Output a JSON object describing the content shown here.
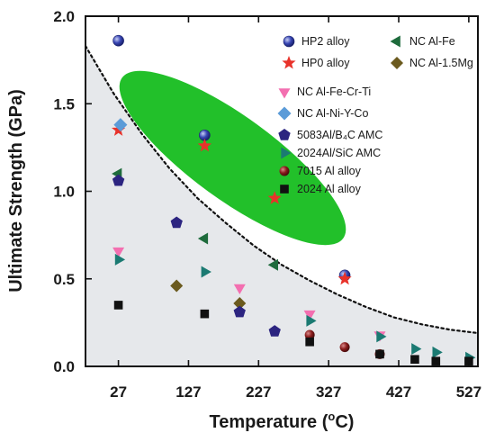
{
  "chart_data": {
    "type": "scatter",
    "title": "",
    "xlabel": "Temperature (",
    "xlabel_sup": "o",
    "xlabel_tail": "C)",
    "ylabel": "Ultimate Strength (GPa)",
    "xlim": [
      -20,
      540
    ],
    "ylim": [
      0,
      2.0
    ],
    "xticks": [
      27,
      127,
      227,
      327,
      427,
      527
    ],
    "yticks": [
      0.0,
      0.5,
      1.0,
      1.5,
      2.0
    ],
    "ytick_labels": [
      "0.0",
      "0.5",
      "1.0",
      "1.5",
      "2.0"
    ],
    "grid": false,
    "legend_position": "top-right",
    "boundary_curve": {
      "style": "dotted",
      "color": "#111111",
      "x": [
        -20,
        20,
        60,
        100,
        140,
        180,
        220,
        260,
        300,
        340,
        380,
        420,
        460,
        500,
        540
      ],
      "y": [
        1.83,
        1.56,
        1.33,
        1.13,
        0.96,
        0.82,
        0.69,
        0.58,
        0.49,
        0.41,
        0.34,
        0.28,
        0.24,
        0.21,
        0.19
      ]
    },
    "highlight_region": {
      "color": "#22c02a",
      "center": [
        190,
        1.19
      ],
      "semi_axes": [
        250,
        0.32
      ],
      "tilt_deg": 36
    },
    "series": [
      {
        "name": "HP2 alloy",
        "marker": "circle-blue",
        "color": "#2f3fa8",
        "x": [
          27,
          150,
          350
        ],
        "y": [
          1.86,
          1.32,
          0.52
        ]
      },
      {
        "name": "HP0 alloy",
        "marker": "star",
        "color": "#e8322a",
        "x": [
          27,
          150,
          250,
          350
        ],
        "y": [
          1.35,
          1.26,
          0.96,
          0.5
        ]
      },
      {
        "name": "NC Al-Fe",
        "marker": "triangle-left",
        "color": "#1e6b3c",
        "x": [
          27,
          150,
          250
        ],
        "y": [
          1.1,
          0.73,
          0.58
        ]
      },
      {
        "name": "NC Al-1.5Mg",
        "marker": "diamond",
        "color": "#6b5a1e",
        "x": [
          110,
          200
        ],
        "y": [
          0.46,
          0.36
        ]
      },
      {
        "name": "NC Al-Fe-Cr-Ti",
        "marker": "triangle-down",
        "color": "#f36fb0",
        "x": [
          27,
          200,
          300,
          400
        ],
        "y": [
          0.66,
          0.45,
          0.3,
          0.18
        ]
      },
      {
        "name": "NC Al-Ni-Y-Co",
        "marker": "diamond-blue",
        "color": "#5b9bd8",
        "x": [
          30
        ],
        "y": [
          1.38
        ]
      },
      {
        "name": "5083Al/B₄C AMC",
        "marker": "pentagon",
        "color": "#2c2480",
        "x": [
          27,
          110,
          200,
          250
        ],
        "y": [
          1.06,
          0.82,
          0.31,
          0.2
        ]
      },
      {
        "name": "2024Al/SiC AMC",
        "marker": "triangle-right",
        "color": "#1b7a72",
        "x": [
          27,
          150,
          300,
          400,
          450,
          480,
          527
        ],
        "y": [
          0.61,
          0.54,
          0.26,
          0.17,
          0.1,
          0.08,
          0.05
        ]
      },
      {
        "name": "7015 Al alloy",
        "marker": "circle-dark",
        "color": "#8a1c1c",
        "x": [
          300,
          350,
          400
        ],
        "y": [
          0.18,
          0.11,
          0.07
        ]
      },
      {
        "name": "2024 Al alloy",
        "marker": "square",
        "color": "#111111",
        "x": [
          27,
          150,
          300,
          400,
          450,
          480,
          527
        ],
        "y": [
          0.35,
          0.3,
          0.14,
          0.07,
          0.04,
          0.03,
          0.03
        ]
      }
    ]
  }
}
